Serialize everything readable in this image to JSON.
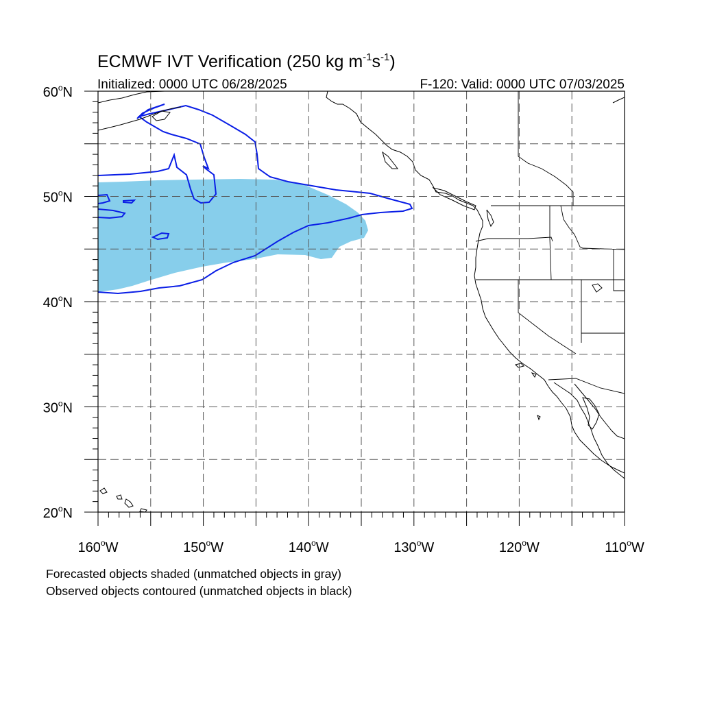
{
  "title": {
    "main": "ECMWF IVT Verification (250 kg m",
    "exp1": "-1",
    "mid": "s",
    "exp2": "-1",
    "end": ")"
  },
  "subtitle": {
    "initialized": "Initialized: 0000 UTC 06/28/2025",
    "valid": "F-120: Valid: 0000 UTC 07/03/2025"
  },
  "axes": {
    "lon_range": [
      -160,
      -110
    ],
    "lat_range": [
      20,
      60
    ],
    "lon_ticks": [
      {
        "value": -160,
        "num": "160",
        "suffix": "W"
      },
      {
        "value": -150,
        "num": "150",
        "suffix": "W"
      },
      {
        "value": -140,
        "num": "140",
        "suffix": "W"
      },
      {
        "value": -130,
        "num": "130",
        "suffix": "W"
      },
      {
        "value": -120,
        "num": "120",
        "suffix": "W"
      },
      {
        "value": -110,
        "num": "110",
        "suffix": "W"
      }
    ],
    "lat_ticks": [
      {
        "value": 60,
        "num": "60",
        "suffix": "N"
      },
      {
        "value": 50,
        "num": "50",
        "suffix": "N"
      },
      {
        "value": 40,
        "num": "40",
        "suffix": "N"
      },
      {
        "value": 30,
        "num": "30",
        "suffix": "N"
      },
      {
        "value": 20,
        "num": "20",
        "suffix": "N"
      }
    ],
    "grid_lon": [
      -155,
      -150,
      -145,
      -140,
      -135,
      -130,
      -125,
      -120,
      -115
    ],
    "grid_lat": [
      25,
      30,
      35,
      40,
      45,
      50,
      55
    ]
  },
  "legend": {
    "line1": "Forecasted objects shaded (unmatched objects in gray)",
    "line2": "Observed objects contoured (unmatched objects in black)"
  },
  "colors": {
    "forecast_fill": "#87ceeb",
    "observed_contour": "#0a1ee6",
    "coastline": "#000000",
    "grid": "#555555"
  }
}
